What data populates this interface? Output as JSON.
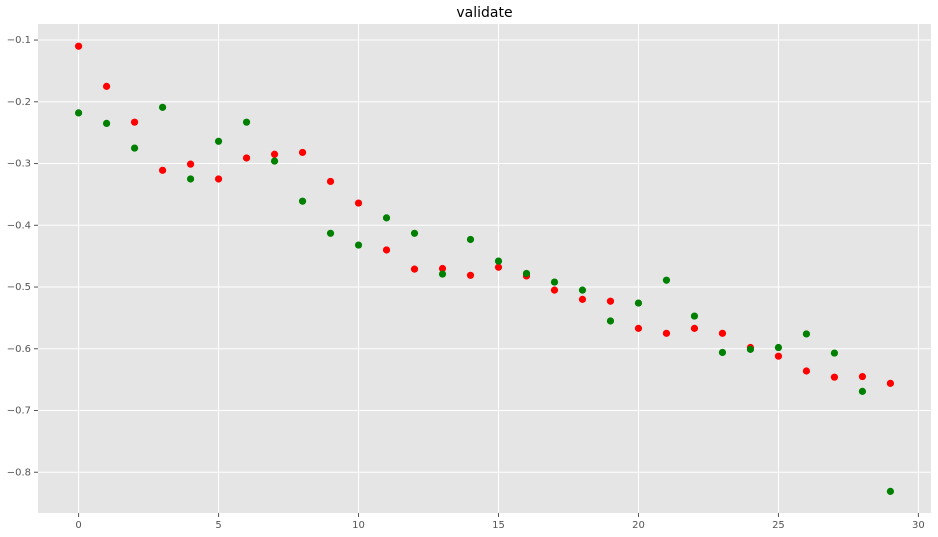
{
  "chart_data": {
    "type": "scatter",
    "title": "validate",
    "x": [
      0,
      1,
      2,
      3,
      4,
      5,
      6,
      7,
      8,
      9,
      10,
      11,
      12,
      13,
      14,
      15,
      16,
      17,
      18,
      19,
      20,
      21,
      22,
      23,
      24,
      25,
      26,
      27,
      28,
      29
    ],
    "series": [
      {
        "color": "#ff0000",
        "values": [
          -0.11,
          -0.175,
          -0.233,
          -0.311,
          -0.301,
          -0.325,
          -0.291,
          -0.285,
          -0.282,
          -0.329,
          -0.364,
          -0.44,
          -0.471,
          -0.47,
          -0.481,
          -0.468,
          -0.482,
          -0.505,
          -0.52,
          -0.523,
          -0.567,
          -0.575,
          -0.567,
          -0.575,
          -0.598,
          -0.612,
          -0.636,
          -0.646,
          -0.645,
          -0.656
        ]
      },
      {
        "color": "#008000",
        "values": [
          -0.218,
          -0.235,
          -0.275,
          -0.209,
          -0.325,
          -0.264,
          -0.233,
          -0.296,
          -0.361,
          -0.413,
          -0.432,
          -0.388,
          -0.413,
          -0.479,
          -0.423,
          -0.458,
          -0.478,
          -0.492,
          -0.505,
          -0.555,
          -0.526,
          -0.489,
          -0.547,
          -0.606,
          -0.601,
          -0.598,
          -0.576,
          -0.607,
          -0.669,
          -0.831
        ]
      }
    ],
    "xlim": [
      -1.45,
      30.45
    ],
    "ylim": [
      -0.866,
      -0.074
    ],
    "xticks": [
      0,
      5,
      10,
      15,
      20,
      25,
      30
    ],
    "yticks": [
      {
        "value": -0.1,
        "label": "−0.1"
      },
      {
        "value": -0.2,
        "label": "−0.2"
      },
      {
        "value": -0.3,
        "label": "−0.3"
      },
      {
        "value": -0.4,
        "label": "−0.4"
      },
      {
        "value": -0.5,
        "label": "−0.5"
      },
      {
        "value": -0.6,
        "label": "−0.6"
      },
      {
        "value": -0.7,
        "label": "−0.7"
      },
      {
        "value": -0.8,
        "label": "−0.8"
      }
    ],
    "grid": true
  }
}
